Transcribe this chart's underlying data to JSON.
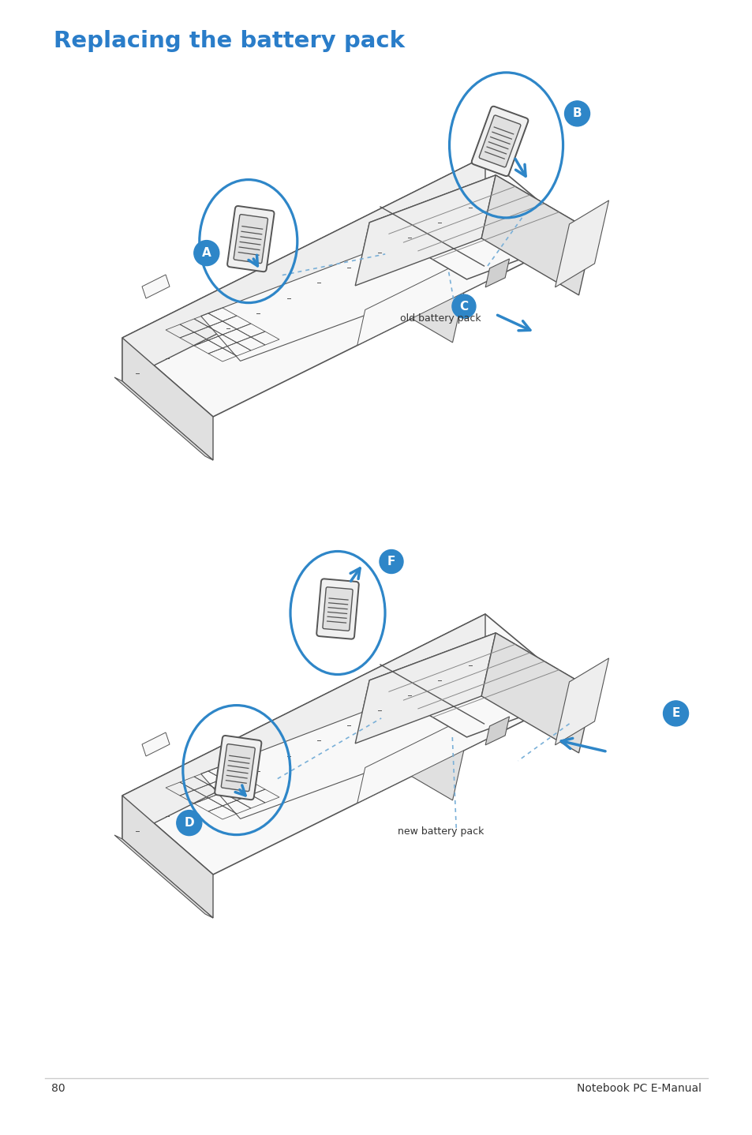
{
  "title": "Replacing the battery pack",
  "title_color": "#2a7dc9",
  "title_fontsize": 21,
  "label_A": "A",
  "label_B": "B",
  "label_C": "C",
  "label_D": "D",
  "label_E": "E",
  "label_F": "F",
  "circle_color": "#2e86c8",
  "arrow_color": "#2e86c8",
  "line_color": "#555555",
  "line_color_light": "#888888",
  "fill_main": "#f8f8f8",
  "fill_side": "#eeeeee",
  "fill_dark": "#e0e0e0",
  "old_battery_label": "old battery pack",
  "new_battery_label": "new battery pack",
  "page_number": "80",
  "manual_title": "Notebook PC E-Manual",
  "text_color": "#333333",
  "bg_color": "#ffffff",
  "footer_line_color": "#cccccc"
}
